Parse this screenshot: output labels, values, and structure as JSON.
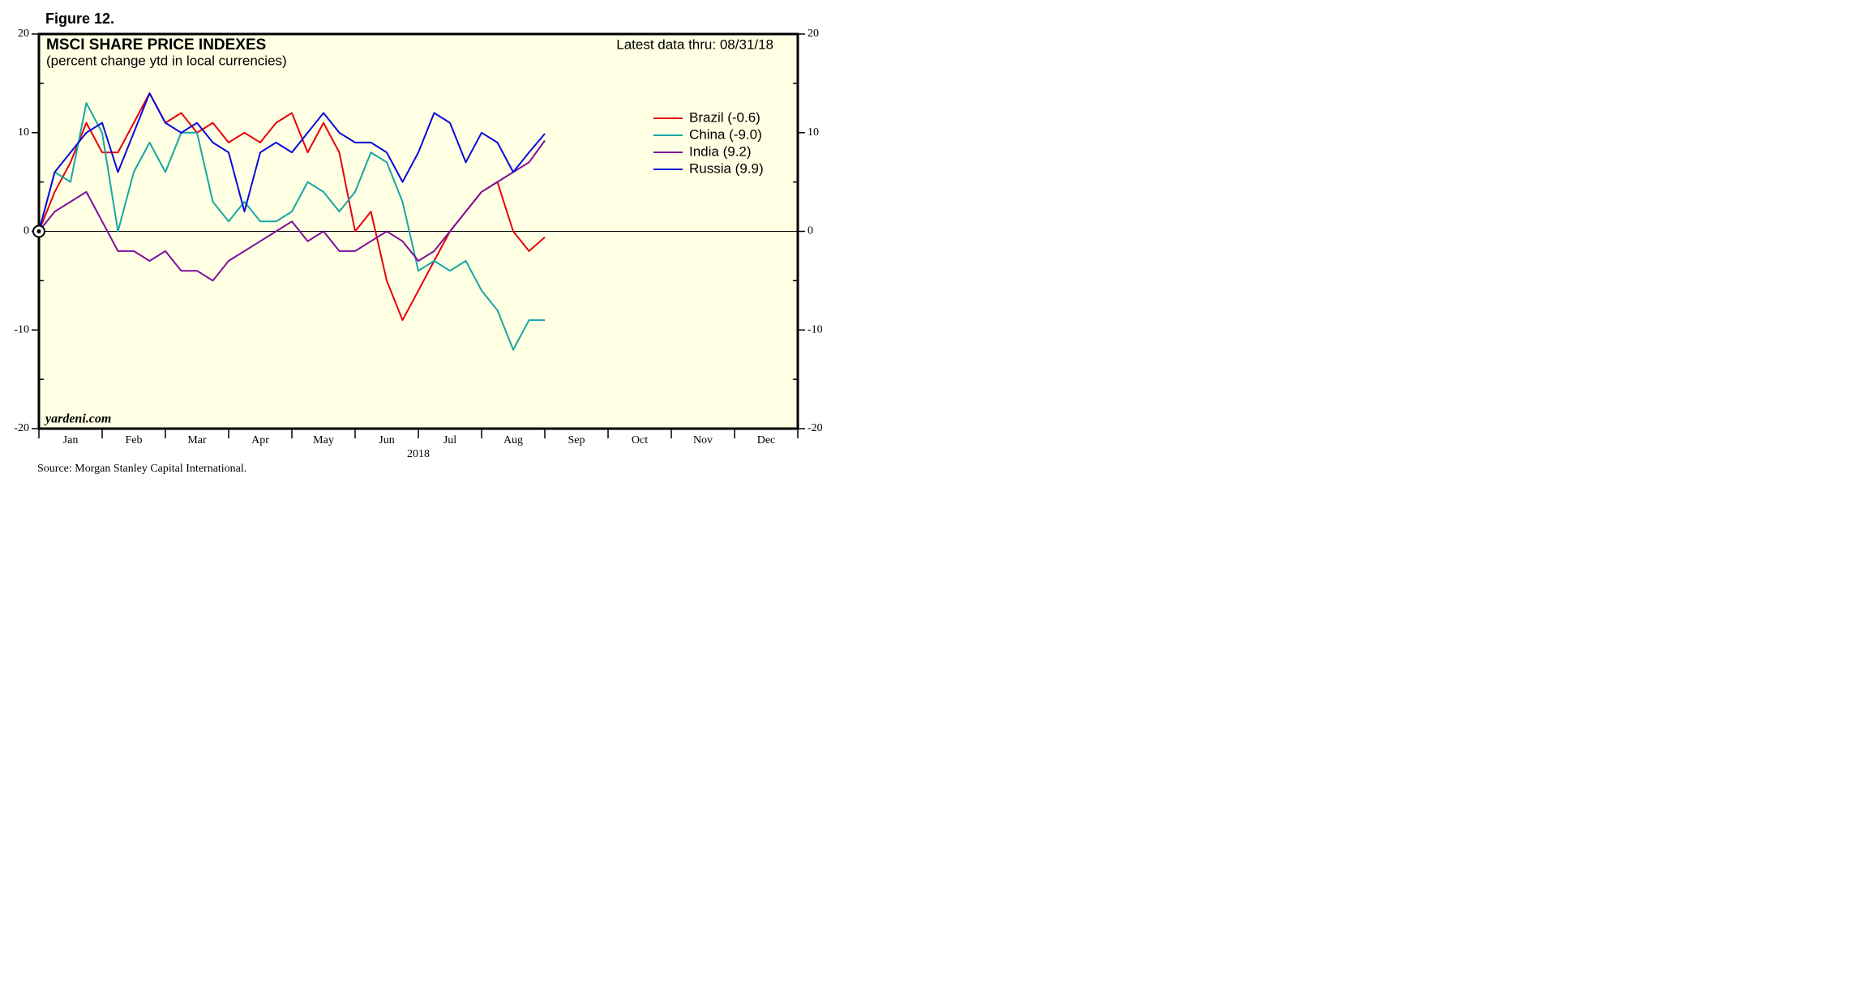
{
  "chart_data": {
    "type": "line",
    "figure_label": "Figure 12.",
    "title": "MSCI SHARE PRICE INDEXES",
    "subtitle": "(percent change ytd in local currencies)",
    "annotation": "Latest data thru: 08/31/18",
    "watermark": "yardeni.com",
    "x_axis_label": "2018",
    "source": "Source: Morgan Stanley Capital International.",
    "x": [
      0,
      0.25,
      0.5,
      0.75,
      1,
      1.25,
      1.5,
      1.75,
      2,
      2.25,
      2.5,
      2.75,
      3,
      3.25,
      3.5,
      3.75,
      4,
      4.25,
      4.5,
      4.75,
      5,
      5.25,
      5.5,
      5.75,
      6,
      6.25,
      6.5,
      6.75,
      7,
      7.25,
      7.5,
      7.75,
      8
    ],
    "xlim": [
      0,
      12
    ],
    "xminorticks": [
      0,
      1,
      2,
      3,
      4,
      5,
      6,
      7,
      8,
      9,
      10,
      11,
      12
    ],
    "xticks": [
      {
        "value": 0.5,
        "label": "Jan"
      },
      {
        "value": 1.5,
        "label": "Feb"
      },
      {
        "value": 2.5,
        "label": "Mar"
      },
      {
        "value": 3.5,
        "label": "Apr"
      },
      {
        "value": 4.5,
        "label": "May"
      },
      {
        "value": 5.5,
        "label": "Jun"
      },
      {
        "value": 6.5,
        "label": "Jul"
      },
      {
        "value": 7.5,
        "label": "Aug"
      },
      {
        "value": 8.5,
        "label": "Sep"
      },
      {
        "value": 9.5,
        "label": "Oct"
      },
      {
        "value": 10.5,
        "label": "Nov"
      },
      {
        "value": 11.5,
        "label": "Dec"
      }
    ],
    "ylim": [
      -20,
      20
    ],
    "yticks": [
      20,
      10,
      0,
      -10,
      -20
    ],
    "yminorticks": [
      15,
      5,
      -5,
      -15
    ],
    "y2lim": [
      -20,
      20
    ],
    "y2ticks": [
      20,
      10,
      0,
      -10,
      -20
    ],
    "zero_line": true,
    "background": "#ffffe3",
    "series": [
      {
        "name": "Brazil (-0.6)",
        "color": "#e8000b",
        "values": [
          0,
          4,
          7,
          11,
          8,
          8,
          11,
          14,
          11,
          12,
          10,
          11,
          9,
          10,
          9,
          11,
          12,
          8,
          11,
          8,
          0,
          2,
          -5,
          -9,
          -6,
          -3,
          0,
          2,
          4,
          5,
          0,
          -2,
          -0.6
        ]
      },
      {
        "name": "China (-9.0)",
        "color": "#17a6a6",
        "values": [
          0,
          6,
          5,
          13,
          10,
          0,
          6,
          9,
          6,
          10,
          10,
          3,
          1,
          3,
          1,
          1,
          2,
          5,
          4,
          2,
          4,
          8,
          7,
          3,
          -4,
          -3,
          -4,
          -3,
          -6,
          -8,
          -12,
          -9,
          -9.0
        ]
      },
      {
        "name": "India (9.2)",
        "color": "#7d0f9e",
        "values": [
          0,
          2,
          3,
          4,
          1,
          -2,
          -2,
          -3,
          -2,
          -4,
          -4,
          -5,
          -3,
          -2,
          -1,
          0,
          1,
          -1,
          0,
          -2,
          -2,
          -1,
          0,
          -1,
          -3,
          -2,
          0,
          2,
          4,
          5,
          6,
          7,
          9.2
        ]
      },
      {
        "name": "Russia (9.9)",
        "color": "#0a0adc",
        "values": [
          0,
          6,
          8,
          10,
          11,
          6,
          10,
          14,
          11,
          10,
          11,
          9,
          8,
          2,
          8,
          9,
          8,
          10,
          12,
          10,
          9,
          9,
          8,
          5,
          8,
          12,
          11,
          7,
          10,
          9,
          6,
          8,
          9.9
        ]
      }
    ]
  }
}
